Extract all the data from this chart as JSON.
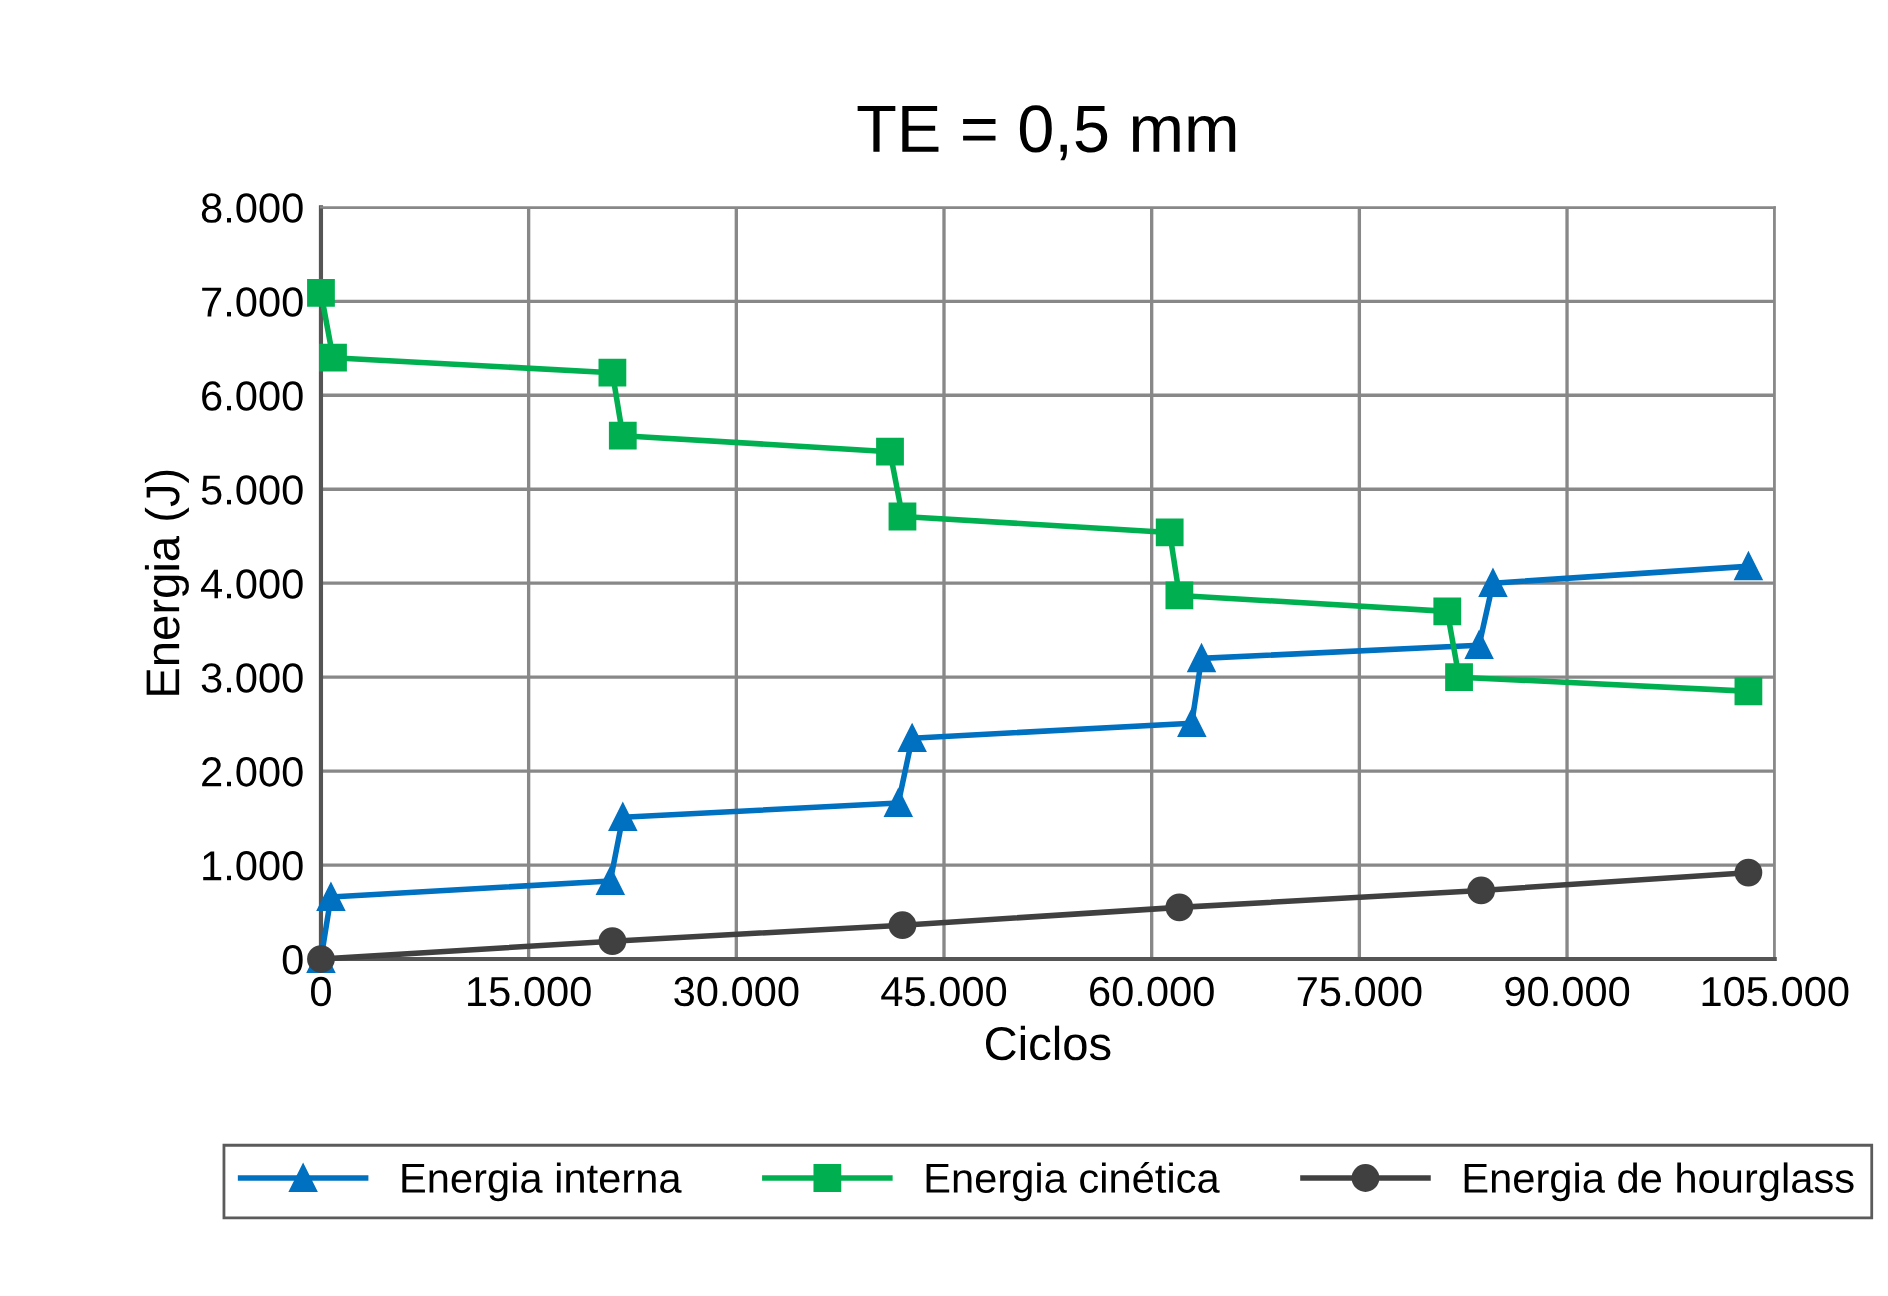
{
  "chart_data": {
    "type": "line",
    "title": "TE = 0,5 mm",
    "xlabel": "Ciclos",
    "ylabel": "Energia (J)",
    "xlim": [
      0,
      105000
    ],
    "xticks": [
      {
        "value": 0,
        "label": "0"
      },
      {
        "value": 15000,
        "label": "15.000"
      },
      {
        "value": 30000,
        "label": "30.000"
      },
      {
        "value": 45000,
        "label": "45.000"
      },
      {
        "value": 60000,
        "label": "60.000"
      },
      {
        "value": 75000,
        "label": "75.000"
      },
      {
        "value": 90000,
        "label": "90.000"
      },
      {
        "value": 105000,
        "label": "105.000"
      }
    ],
    "ylim": [
      0,
      8000
    ],
    "yticks": [
      {
        "value": 0,
        "label": "0"
      },
      {
        "value": 1000,
        "label": "1.000"
      },
      {
        "value": 2000,
        "label": "2.000"
      },
      {
        "value": 3000,
        "label": "3.000"
      },
      {
        "value": 4000,
        "label": "4.000"
      },
      {
        "value": 5000,
        "label": "5.000"
      },
      {
        "value": 6000,
        "label": "6.000"
      },
      {
        "value": 7000,
        "label": "7.000"
      },
      {
        "value": 8000,
        "label": "8.000"
      }
    ],
    "grid": true,
    "legend": "bottom",
    "line_style": "solid",
    "series": [
      {
        "name": "Energia interna",
        "color": "#0070c0",
        "marker": "triangle",
        "x": [
          0,
          720,
          20900,
          21800,
          41700,
          42700,
          62900,
          63600,
          83650,
          84650,
          103100
        ],
        "values": [
          0,
          660,
          830,
          1510,
          1660,
          2350,
          2510,
          3200,
          3340,
          4000,
          4180
        ]
      },
      {
        "name": "Energia cinética",
        "color": "#00b050",
        "marker": "square",
        "x": [
          0,
          870,
          21050,
          21800,
          41100,
          42000,
          61300,
          62000,
          81350,
          82200,
          103100
        ],
        "values": [
          7090,
          6400,
          6240,
          5570,
          5400,
          4710,
          4540,
          3870,
          3700,
          3000,
          2850
        ]
      },
      {
        "name": "Energia de hourglass",
        "color": "#404040",
        "marker": "circle",
        "x": [
          0,
          21050,
          42000,
          62000,
          83800,
          103100
        ],
        "values": [
          0,
          190,
          360,
          550,
          730,
          920
        ]
      }
    ]
  }
}
